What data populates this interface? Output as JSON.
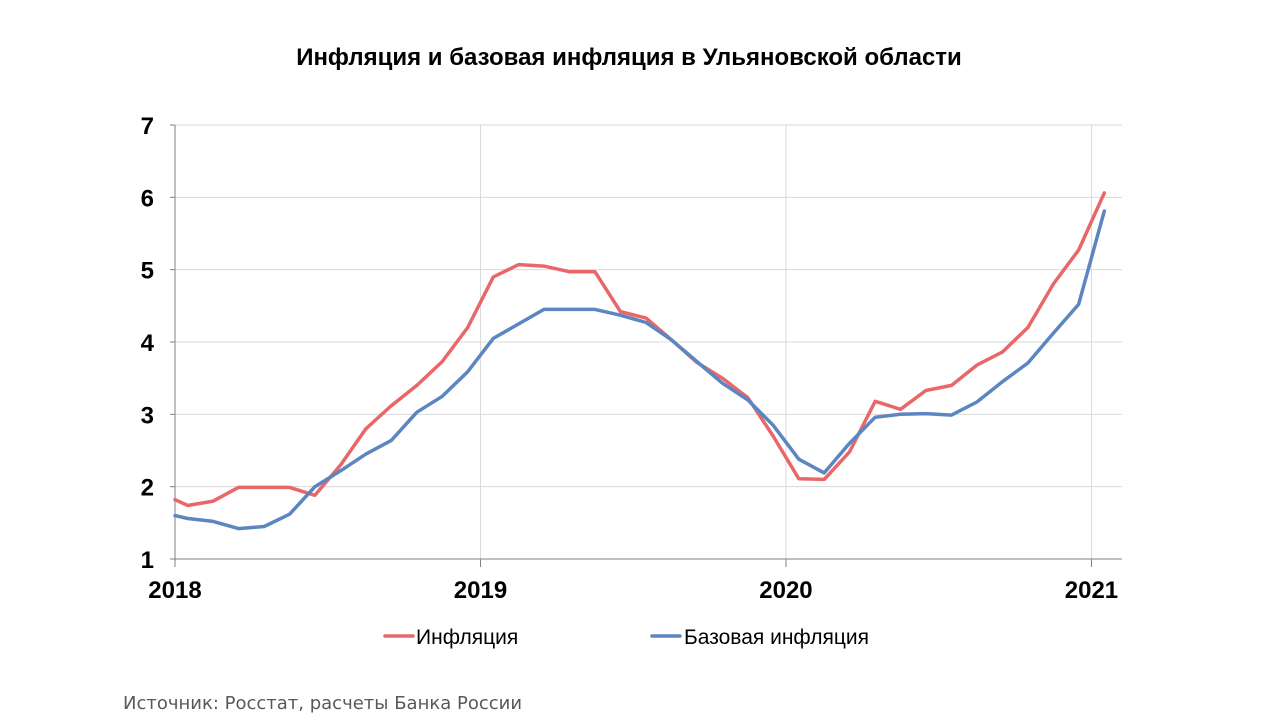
{
  "chart_data": {
    "type": "line",
    "title": "Инфляция и базовая инфляция в Ульяновской области",
    "xlabel": "",
    "ylabel": "",
    "xlim": [
      2018.0,
      2021.1
    ],
    "ylim": [
      1,
      7
    ],
    "y_ticks": [
      1,
      2,
      3,
      4,
      5,
      6,
      7
    ],
    "x_ticks": [
      "2018",
      "2019",
      "2020",
      "2021"
    ],
    "grid": true,
    "legend_position": "bottom",
    "series": [
      {
        "name": "Инфляция",
        "color": "#E8686A",
        "points": [
          [
            2018.0,
            1.82
          ],
          [
            2018.042,
            1.74
          ],
          [
            2018.125,
            1.8
          ],
          [
            2018.208,
            1.99
          ],
          [
            2018.292,
            1.99
          ],
          [
            2018.375,
            1.99
          ],
          [
            2018.458,
            1.88
          ],
          [
            2018.542,
            2.3
          ],
          [
            2018.625,
            2.8
          ],
          [
            2018.708,
            3.12
          ],
          [
            2018.792,
            3.4
          ],
          [
            2018.875,
            3.73
          ],
          [
            2018.958,
            4.2
          ],
          [
            2019.042,
            4.9
          ],
          [
            2019.125,
            5.07
          ],
          [
            2019.208,
            5.05
          ],
          [
            2019.292,
            4.97
          ],
          [
            2019.375,
            4.97
          ],
          [
            2019.458,
            4.42
          ],
          [
            2019.542,
            4.33
          ],
          [
            2019.625,
            4.03
          ],
          [
            2019.708,
            3.72
          ],
          [
            2019.792,
            3.5
          ],
          [
            2019.875,
            3.23
          ],
          [
            2019.958,
            2.7
          ],
          [
            2020.042,
            2.11
          ],
          [
            2020.125,
            2.1
          ],
          [
            2020.208,
            2.48
          ],
          [
            2020.292,
            3.18
          ],
          [
            2020.375,
            3.07
          ],
          [
            2020.458,
            3.33
          ],
          [
            2020.542,
            3.4
          ],
          [
            2020.625,
            3.68
          ],
          [
            2020.708,
            3.86
          ],
          [
            2020.792,
            4.2
          ],
          [
            2020.875,
            4.8
          ],
          [
            2020.958,
            5.27
          ],
          [
            2021.042,
            6.06
          ]
        ]
      },
      {
        "name": "Базовая инфляция",
        "color": "#5B86C0",
        "points": [
          [
            2018.0,
            1.6
          ],
          [
            2018.042,
            1.56
          ],
          [
            2018.125,
            1.52
          ],
          [
            2018.208,
            1.42
          ],
          [
            2018.292,
            1.45
          ],
          [
            2018.375,
            1.62
          ],
          [
            2018.458,
            2.0
          ],
          [
            2018.542,
            2.22
          ],
          [
            2018.625,
            2.45
          ],
          [
            2018.708,
            2.64
          ],
          [
            2018.792,
            3.03
          ],
          [
            2018.875,
            3.25
          ],
          [
            2018.958,
            3.59
          ],
          [
            2019.042,
            4.05
          ],
          [
            2019.125,
            4.25
          ],
          [
            2019.208,
            4.45
          ],
          [
            2019.292,
            4.45
          ],
          [
            2019.375,
            4.45
          ],
          [
            2019.458,
            4.37
          ],
          [
            2019.542,
            4.27
          ],
          [
            2019.625,
            4.03
          ],
          [
            2019.708,
            3.73
          ],
          [
            2019.792,
            3.43
          ],
          [
            2019.875,
            3.2
          ],
          [
            2019.958,
            2.85
          ],
          [
            2020.042,
            2.38
          ],
          [
            2020.125,
            2.19
          ],
          [
            2020.208,
            2.6
          ],
          [
            2020.292,
            2.96
          ],
          [
            2020.375,
            3.0
          ],
          [
            2020.458,
            3.01
          ],
          [
            2020.542,
            2.99
          ],
          [
            2020.625,
            3.17
          ],
          [
            2020.708,
            3.45
          ],
          [
            2020.792,
            3.71
          ],
          [
            2020.875,
            4.12
          ],
          [
            2020.958,
            4.52
          ],
          [
            2021.042,
            5.81
          ]
        ]
      }
    ]
  },
  "source_note": "Источник: Росстат, расчеты Банка России"
}
